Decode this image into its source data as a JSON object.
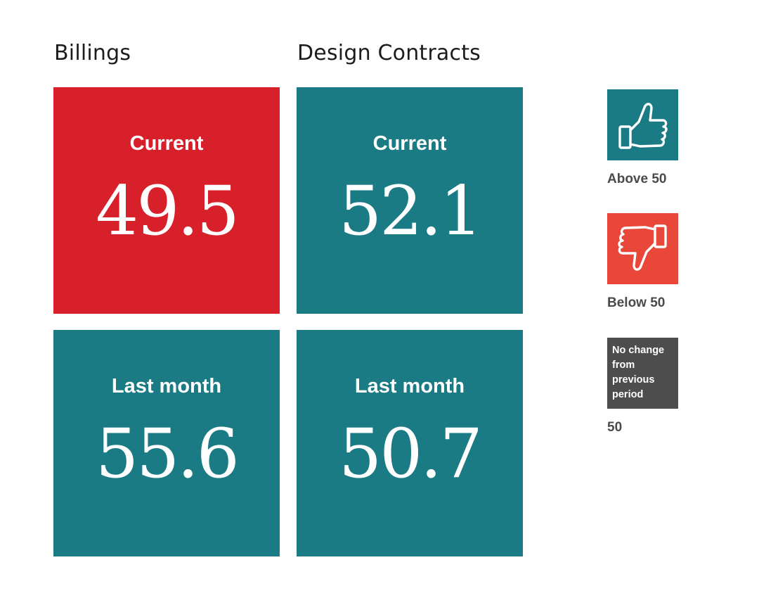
{
  "columns": {
    "billings": {
      "title": "Billings",
      "current": {
        "label": "Current",
        "value": "49.5"
      },
      "last_month": {
        "label": "Last month",
        "value": "55.6"
      }
    },
    "design_contracts": {
      "title": "Design Contracts",
      "current": {
        "label": "Current",
        "value": "52.1"
      },
      "last_month": {
        "label": "Last month",
        "value": "50.7"
      }
    }
  },
  "legend": {
    "above": {
      "label": "Above 50",
      "icon": "thumbs-up-icon"
    },
    "below": {
      "label": "Below 50",
      "icon": "thumbs-down-icon"
    },
    "no_change": {
      "box_text": "No change from previous period",
      "label": "50"
    }
  },
  "colors": {
    "above": "#1a7b84",
    "below_tile": "#d8202a",
    "below_legend": "#e8473a",
    "no_change": "#4d4d4d"
  }
}
